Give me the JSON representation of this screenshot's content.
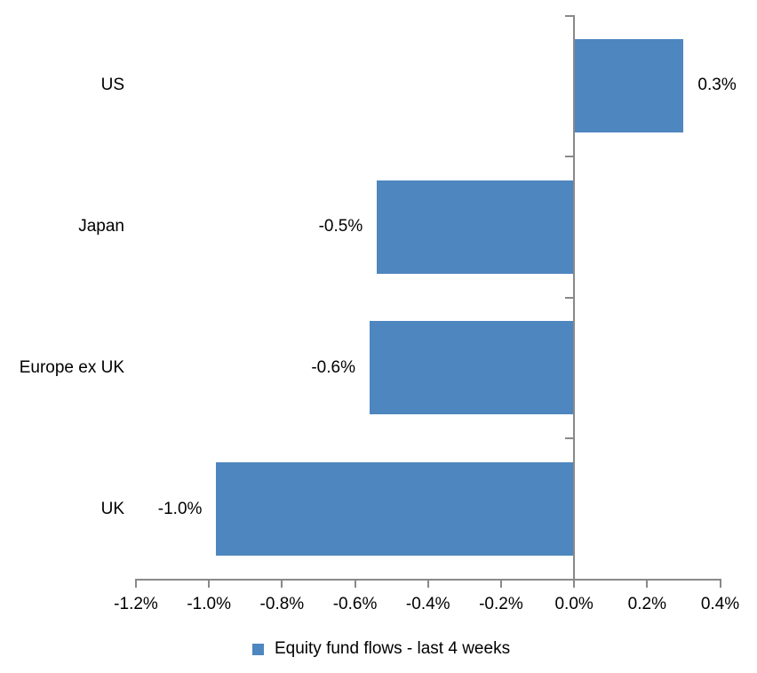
{
  "chart_data": {
    "type": "bar",
    "orientation": "horizontal",
    "title": "",
    "categories": [
      "US",
      "Japan",
      "Europe ex UK",
      "UK"
    ],
    "series": [
      {
        "name": "Equity fund flows - last 4 weeks",
        "values": [
          0.3,
          -0.5,
          -0.6,
          -1.0
        ],
        "plotted_values": [
          0.3,
          -0.54,
          -0.56,
          -0.98
        ],
        "data_labels": [
          "0.3%",
          "-0.5%",
          "-0.6%",
          "-1.0%"
        ]
      }
    ],
    "x_axis": {
      "min": -1.2,
      "max": 0.4,
      "step": 0.2,
      "tick_labels": [
        "-1.2%",
        "-1.0%",
        "-0.8%",
        "-0.6%",
        "-0.4%",
        "-0.2%",
        "0.0%",
        "0.2%",
        "0.4%"
      ]
    },
    "legend": {
      "position": "bottom",
      "entries": [
        {
          "label": "Equity fund flows - last 4 weeks",
          "swatch_color": "#4E86BF"
        }
      ]
    },
    "grid": false,
    "colors": {
      "bar": "#4E86BF",
      "axis": "#898989",
      "text": "#000000",
      "background": "#FFFFFF"
    }
  }
}
